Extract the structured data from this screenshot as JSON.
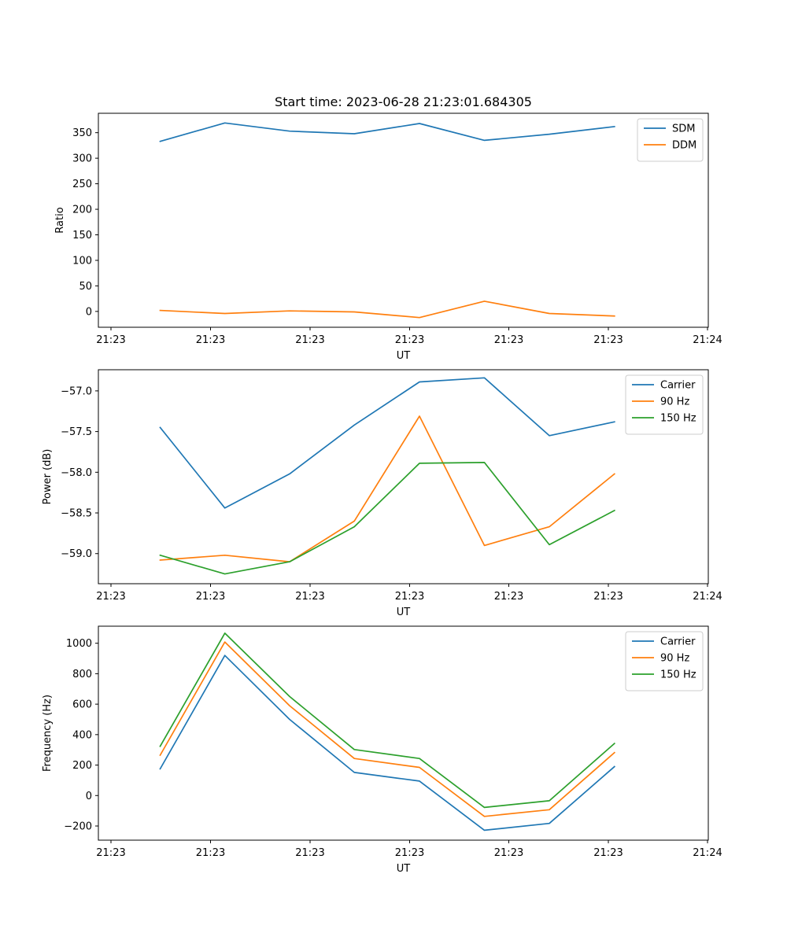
{
  "figure_title": "Start time: 2023-06-28 21:23:01.684305",
  "x_tick_labels": [
    "21:23",
    "21:23",
    "21:23",
    "21:23",
    "21:23",
    "21:23",
    "21:24"
  ],
  "chart_data": [
    {
      "type": "line",
      "title": "Start time: 2023-06-28 21:23:01.684305",
      "xlabel": "UT",
      "ylabel": "Ratio",
      "x": [
        1,
        2,
        3,
        4,
        5,
        6,
        7,
        8
      ],
      "ylim": [
        -31,
        388
      ],
      "yticks": [
        0,
        50,
        100,
        150,
        200,
        250,
        300,
        350
      ],
      "grid": false,
      "legend": "top-right",
      "series": [
        {
          "name": "SDM",
          "color": "#1f77b4",
          "values": [
            333,
            369,
            353,
            348,
            368,
            335,
            347,
            362
          ]
        },
        {
          "name": "DDM",
          "color": "#ff7f0e",
          "values": [
            2,
            -4,
            1,
            -1,
            -12,
            20,
            -4,
            -9
          ]
        }
      ]
    },
    {
      "type": "line",
      "title": "",
      "xlabel": "UT",
      "ylabel": "Power (dB)",
      "x": [
        1,
        2,
        3,
        4,
        5,
        6,
        7,
        8
      ],
      "ylim": [
        -59.37,
        -56.74
      ],
      "yticks": [
        -59.0,
        -58.5,
        -58.0,
        -57.5,
        -57.0
      ],
      "ytick_labels": [
        "−59.0",
        "−58.5",
        "−58.0",
        "−57.5",
        "−57.0"
      ],
      "grid": false,
      "legend": "top-right",
      "series": [
        {
          "name": "Carrier",
          "color": "#1f77b4",
          "values": [
            -57.45,
            -58.44,
            -58.02,
            -57.42,
            -56.89,
            -56.84,
            -57.55,
            -57.38
          ]
        },
        {
          "name": "90 Hz",
          "color": "#ff7f0e",
          "values": [
            -59.08,
            -59.02,
            -59.1,
            -58.6,
            -57.31,
            -58.9,
            -58.67,
            -58.02
          ]
        },
        {
          "name": "150 Hz",
          "color": "#2ca02c",
          "values": [
            -59.02,
            -59.25,
            -59.1,
            -58.67,
            -57.89,
            -57.88,
            -58.89,
            -58.47
          ]
        }
      ]
    },
    {
      "type": "line",
      "title": "",
      "xlabel": "UT",
      "ylabel": "Frequency (Hz)",
      "x": [
        1,
        2,
        3,
        4,
        5,
        6,
        7,
        8
      ],
      "ylim": [
        -293,
        1112
      ],
      "yticks": [
        -200,
        0,
        200,
        400,
        600,
        800,
        1000
      ],
      "ytick_labels": [
        "−200",
        "0",
        "200",
        "400",
        "600",
        "800",
        "1000"
      ],
      "grid": false,
      "legend": "top-right",
      "series": [
        {
          "name": "Carrier",
          "color": "#1f77b4",
          "values": [
            175,
            920,
            500,
            152,
            95,
            -228,
            -183,
            190
          ]
        },
        {
          "name": "90 Hz",
          "color": "#ff7f0e",
          "values": [
            265,
            1008,
            590,
            243,
            185,
            -137,
            -93,
            282
          ]
        },
        {
          "name": "150 Hz",
          "color": "#2ca02c",
          "values": [
            323,
            1066,
            650,
            302,
            243,
            -78,
            -34,
            342
          ]
        }
      ]
    }
  ]
}
